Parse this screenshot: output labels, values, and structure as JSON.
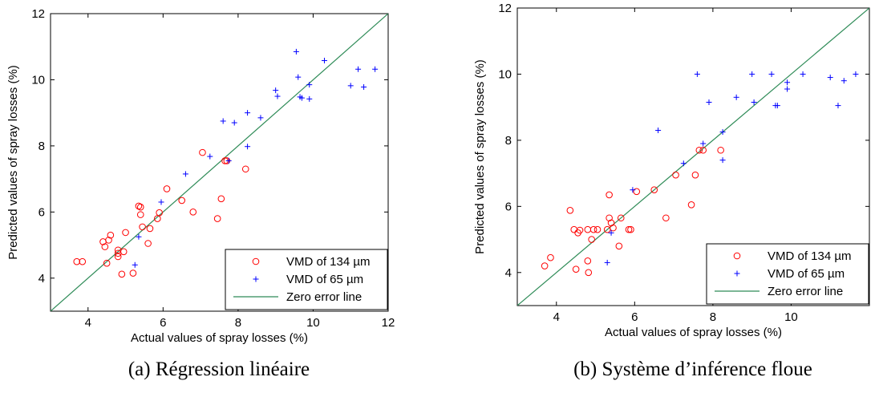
{
  "chart_data": [
    {
      "type": "scatter",
      "caption": "(a) Régression linéaire",
      "xlabel": "Actual values of spray losses (%)",
      "ylabel": "Predicted values of spray losses (%)",
      "xlim": [
        3,
        12
      ],
      "ylim": [
        3,
        12
      ],
      "xticks": [
        4,
        6,
        8,
        10,
        12
      ],
      "yticks": [
        4,
        6,
        8,
        10,
        12
      ],
      "grid": false,
      "legend_position": "bottom-right",
      "series": [
        {
          "name": "VMD of 134 µm",
          "marker": "circle",
          "color": "#ff0000",
          "points": [
            [
              3.7,
              4.5
            ],
            [
              3.85,
              4.5
            ],
            [
              4.4,
              5.1
            ],
            [
              4.45,
              4.95
            ],
            [
              4.5,
              4.45
            ],
            [
              4.55,
              5.15
            ],
            [
              4.6,
              5.3
            ],
            [
              4.8,
              4.85
            ],
            [
              4.8,
              4.75
            ],
            [
              4.8,
              4.65
            ],
            [
              4.9,
              4.12
            ],
            [
              4.95,
              4.8
            ],
            [
              5.0,
              5.38
            ],
            [
              5.2,
              4.15
            ],
            [
              5.35,
              6.18
            ],
            [
              5.4,
              5.92
            ],
            [
              5.4,
              6.15
            ],
            [
              5.45,
              5.55
            ],
            [
              5.6,
              5.05
            ],
            [
              5.65,
              5.5
            ],
            [
              5.85,
              5.8
            ],
            [
              5.9,
              5.98
            ],
            [
              6.1,
              6.7
            ],
            [
              6.5,
              6.35
            ],
            [
              6.8,
              6.0
            ],
            [
              7.05,
              7.8
            ],
            [
              7.45,
              5.8
            ],
            [
              7.55,
              6.4
            ],
            [
              7.65,
              7.55
            ],
            [
              7.7,
              7.55
            ],
            [
              8.2,
              7.3
            ]
          ]
        },
        {
          "name": "VMD of 65 µm",
          "marker": "plus",
          "color": "#0000ff",
          "points": [
            [
              5.25,
              4.4
            ],
            [
              5.35,
              5.25
            ],
            [
              5.95,
              6.3
            ],
            [
              6.6,
              7.15
            ],
            [
              7.25,
              7.68
            ],
            [
              7.6,
              8.75
            ],
            [
              7.75,
              7.55
            ],
            [
              7.9,
              8.7
            ],
            [
              8.25,
              9.0
            ],
            [
              8.25,
              7.98
            ],
            [
              8.6,
              8.85
            ],
            [
              9.0,
              9.68
            ],
            [
              9.05,
              9.5
            ],
            [
              9.55,
              10.85
            ],
            [
              9.6,
              10.08
            ],
            [
              9.65,
              9.48
            ],
            [
              9.7,
              9.45
            ],
            [
              9.9,
              9.85
            ],
            [
              9.9,
              9.42
            ],
            [
              10.3,
              10.58
            ],
            [
              11.0,
              9.82
            ],
            [
              11.2,
              10.32
            ],
            [
              11.35,
              9.78
            ],
            [
              11.65,
              10.32
            ]
          ]
        }
      ],
      "reference_line": {
        "name": "Zero error line",
        "color": "#2e8b57",
        "from": [
          3,
          3
        ],
        "to": [
          12,
          12
        ]
      }
    },
    {
      "type": "scatter",
      "caption": "(b) Système d’inférence floue",
      "xlabel": "Actual values of spray losses (%)",
      "ylabel": "Predicted values of spray losses (%)",
      "xlim": [
        3,
        12
      ],
      "ylim": [
        3,
        12
      ],
      "xticks": [
        4,
        6,
        8,
        10
      ],
      "yticks": [
        4,
        6,
        8,
        10,
        12
      ],
      "grid": false,
      "legend_position": "bottom-right",
      "series": [
        {
          "name": "VMD of 134 µm",
          "marker": "circle",
          "color": "#ff0000",
          "points": [
            [
              3.7,
              4.2
            ],
            [
              3.85,
              4.45
            ],
            [
              4.35,
              5.88
            ],
            [
              4.45,
              5.3
            ],
            [
              4.5,
              4.1
            ],
            [
              4.55,
              5.2
            ],
            [
              4.6,
              5.28
            ],
            [
              4.8,
              4.35
            ],
            [
              4.8,
              5.3
            ],
            [
              4.82,
              4.0
            ],
            [
              4.9,
              5.0
            ],
            [
              4.95,
              5.3
            ],
            [
              5.05,
              5.3
            ],
            [
              5.3,
              5.3
            ],
            [
              5.35,
              6.35
            ],
            [
              5.35,
              5.65
            ],
            [
              5.4,
              5.5
            ],
            [
              5.45,
              5.35
            ],
            [
              5.6,
              4.8
            ],
            [
              5.65,
              5.65
            ],
            [
              5.85,
              5.3
            ],
            [
              5.9,
              5.3
            ],
            [
              6.05,
              6.45
            ],
            [
              6.5,
              6.5
            ],
            [
              6.8,
              5.65
            ],
            [
              7.05,
              6.95
            ],
            [
              7.45,
              6.05
            ],
            [
              7.55,
              6.95
            ],
            [
              7.65,
              7.7
            ],
            [
              7.75,
              7.7
            ],
            [
              8.2,
              7.7
            ]
          ]
        },
        {
          "name": "VMD of 65 µm",
          "marker": "plus",
          "color": "#0000ff",
          "points": [
            [
              5.3,
              4.3
            ],
            [
              5.4,
              5.2
            ],
            [
              5.95,
              6.5
            ],
            [
              6.6,
              8.3
            ],
            [
              7.25,
              7.3
            ],
            [
              7.6,
              10.0
            ],
            [
              7.75,
              7.9
            ],
            [
              7.9,
              9.15
            ],
            [
              8.25,
              8.25
            ],
            [
              8.25,
              7.4
            ],
            [
              8.6,
              9.3
            ],
            [
              9.0,
              10.0
            ],
            [
              9.05,
              9.15
            ],
            [
              9.5,
              10.0
            ],
            [
              9.6,
              9.05
            ],
            [
              9.65,
              9.05
            ],
            [
              9.9,
              9.75
            ],
            [
              9.9,
              9.55
            ],
            [
              10.3,
              10.0
            ],
            [
              11.0,
              9.9
            ],
            [
              11.2,
              9.05
            ],
            [
              11.35,
              9.8
            ],
            [
              11.65,
              10.0
            ]
          ]
        }
      ],
      "reference_line": {
        "name": "Zero error line",
        "color": "#2e8b57",
        "from": [
          3,
          3
        ],
        "to": [
          12,
          12
        ]
      }
    }
  ]
}
